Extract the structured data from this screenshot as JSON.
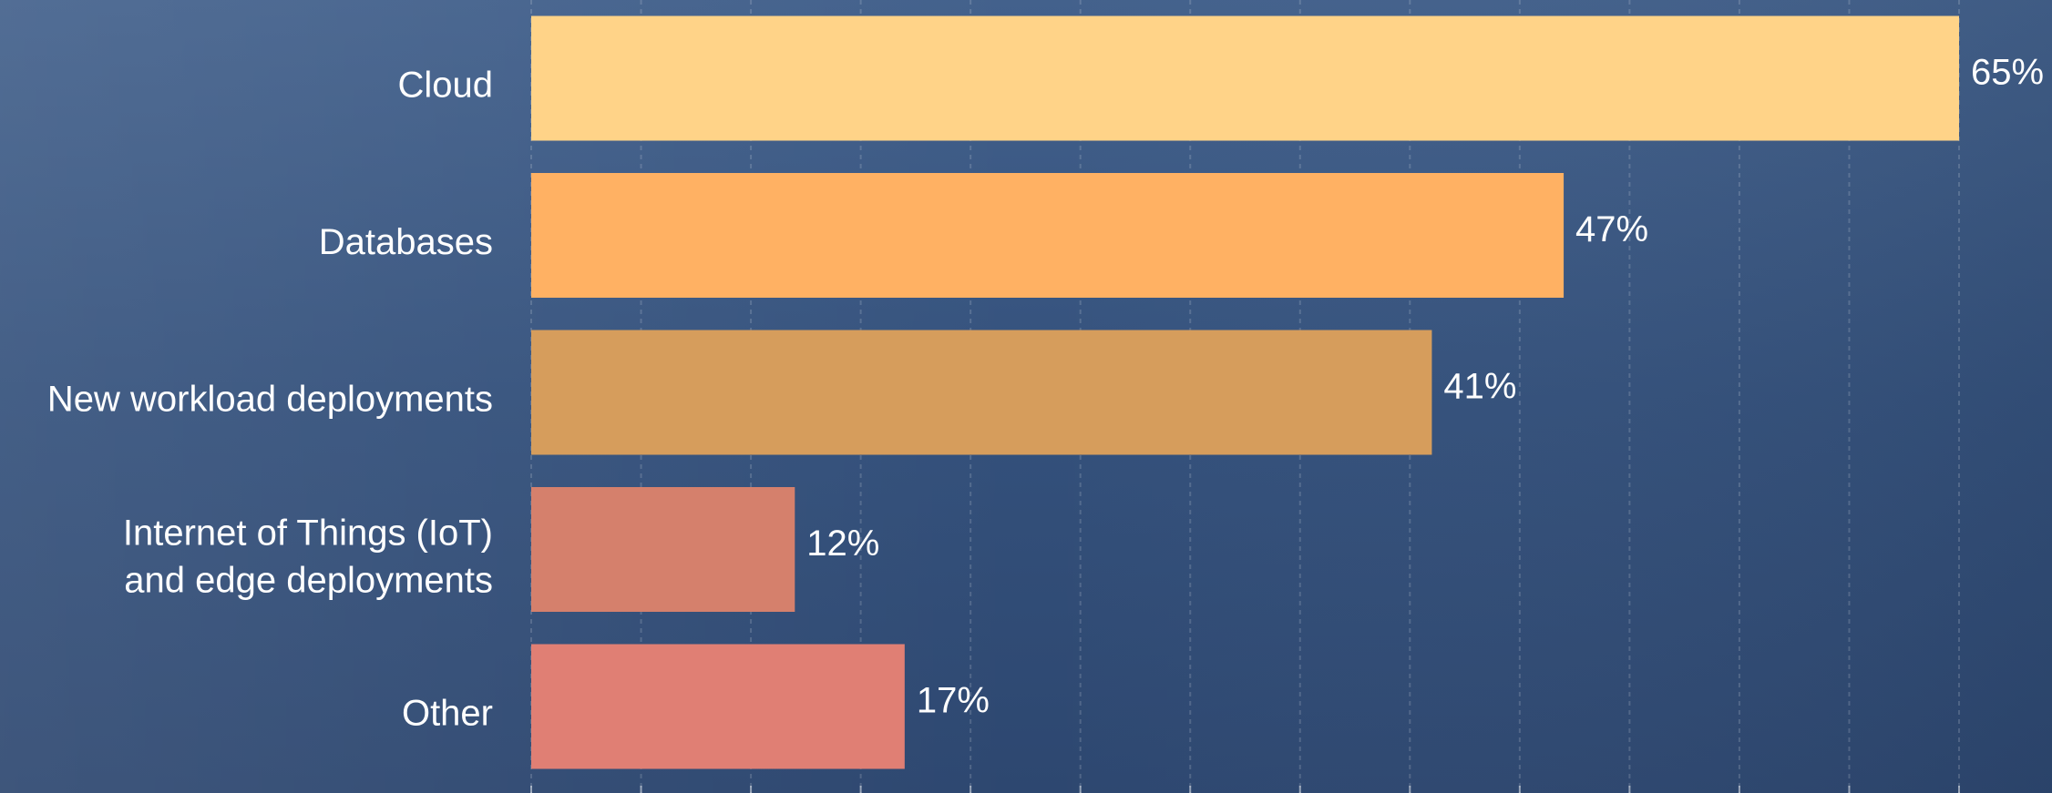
{
  "chart_data": {
    "type": "bar",
    "orientation": "horizontal",
    "categories": [
      "Cloud",
      "Databases",
      "New workload deployments",
      "Internet of Things (IoT)\nand edge deployments",
      "Other"
    ],
    "values": [
      65,
      47,
      41,
      12,
      17
    ],
    "value_labels": [
      "65%",
      "47%",
      "41%",
      "12%",
      "17%"
    ],
    "colors": [
      "#ffd388",
      "#ffb163",
      "#d69d5c",
      "#d5806c",
      "#e07f74"
    ],
    "xlim": [
      0,
      65
    ],
    "xticks": [
      0,
      5,
      10,
      15,
      20,
      25,
      30,
      35,
      40,
      45,
      50,
      55,
      60,
      65
    ],
    "grid": true
  }
}
